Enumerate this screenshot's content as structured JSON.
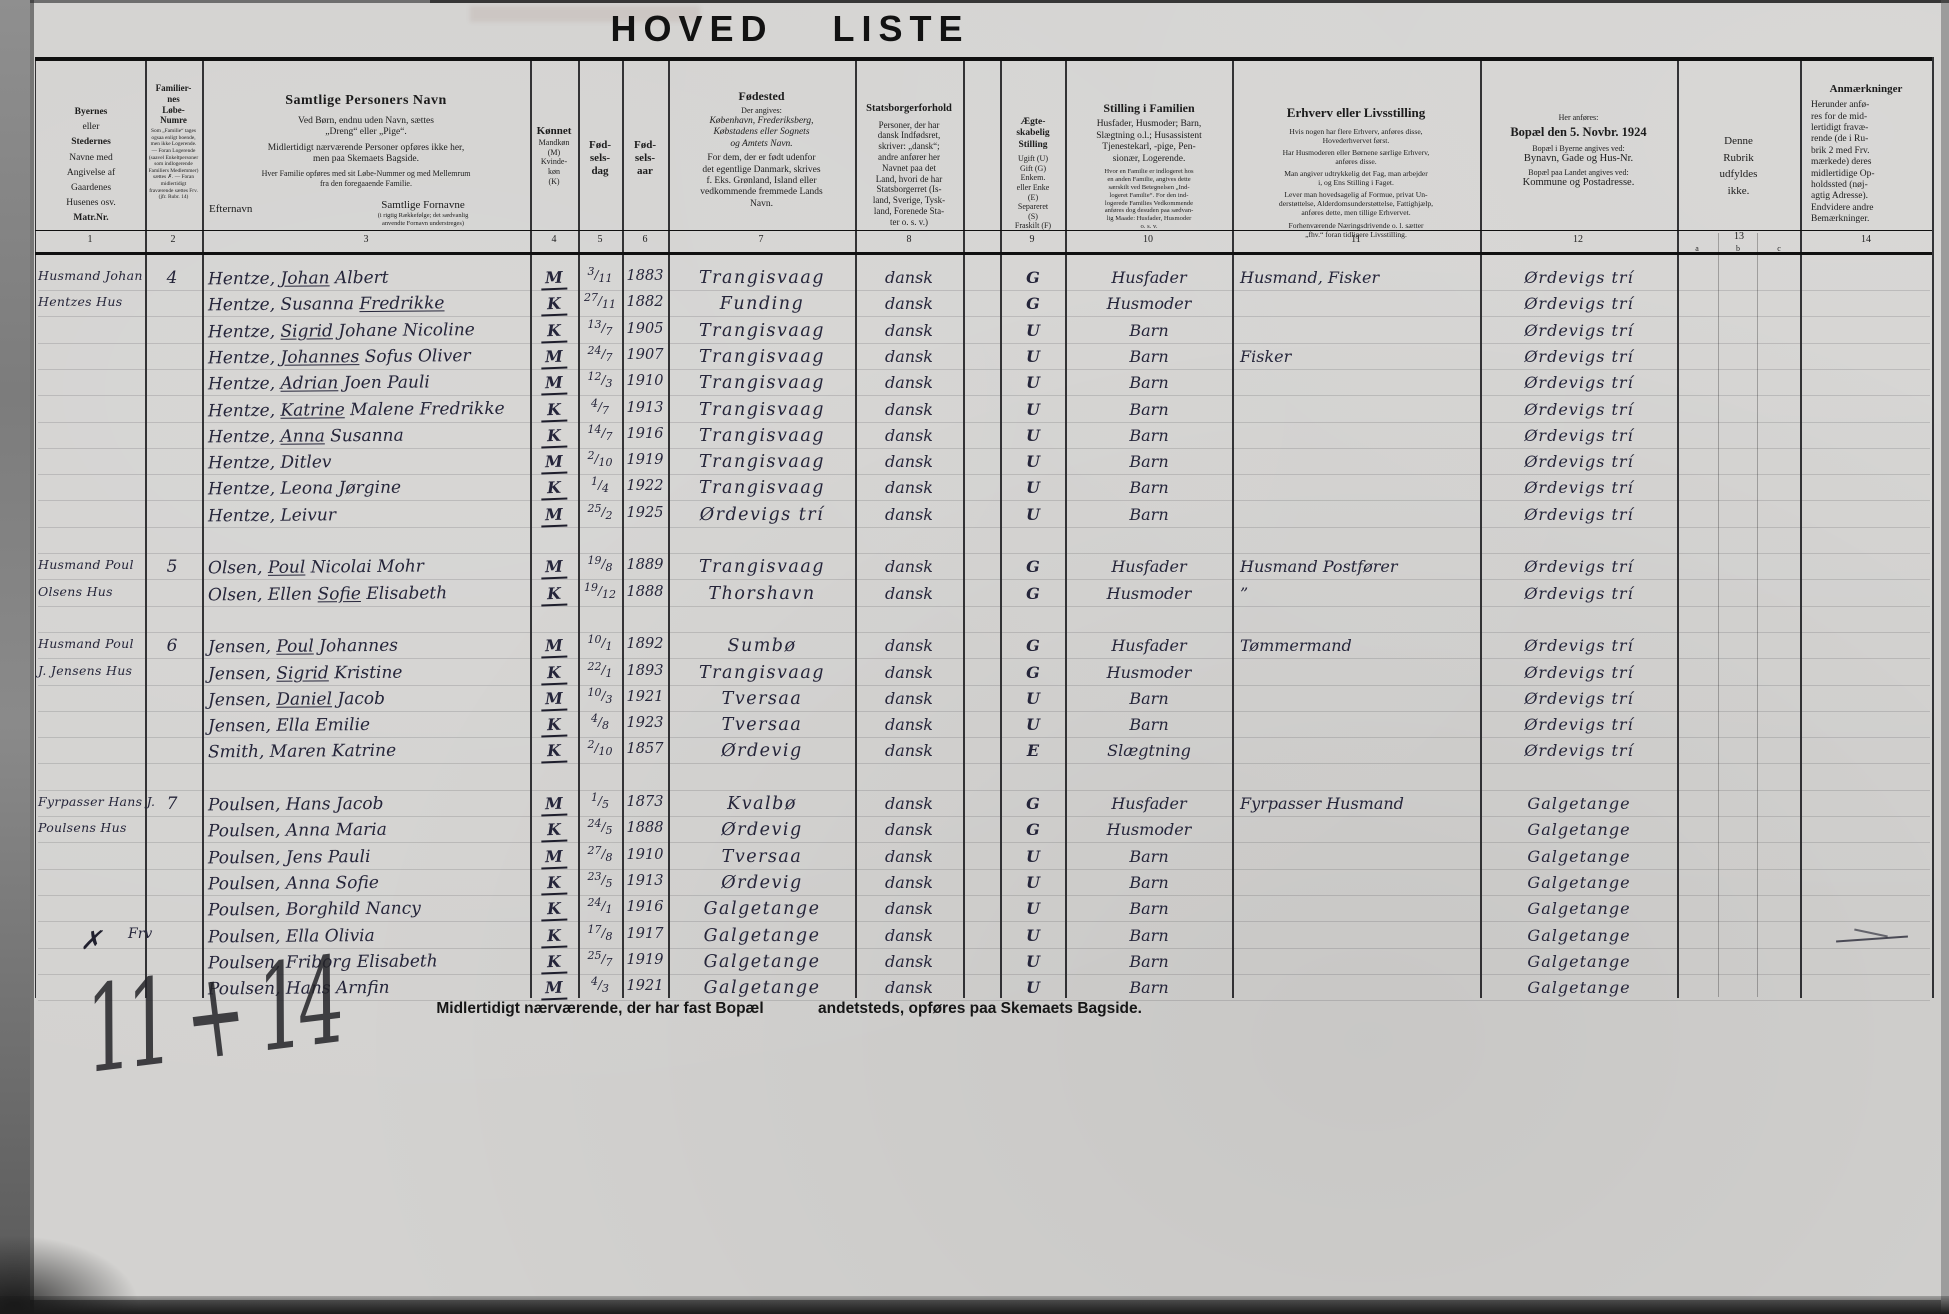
{
  "title": "HOVED LISTE",
  "header": {
    "c1": {
      "b1": "Byernes",
      "n1": "eller",
      "b2": "Stedernes",
      "rest": "Navne med\nAngivelse af\nGaardenes\nHusenes osv.",
      "b3": "Matr.Nr."
    },
    "c2": {
      "head": "Familier-\nnes\nLøbe-\nNumre",
      "small": "Som „Familie“ tages ogsaa enligt boende, men ikke Logerende. — Foran Logerende (saavel Enkeltpersoner som indlogerende Familiers Medlemmer) sættes ✗. — Foran midlertidigt fraværende sættes Frv. (jfr. Rubr. 14)"
    },
    "c3": {
      "head": "Samtlige Personers Navn",
      "p1": "Ved Børn, endnu uden Navn, sættes\n„Dreng“ eller „Pige“.",
      "p2": "Midlertidigt nærværende Personer opføres ikke her,\nmen paa Skemaets Bagside.",
      "p3": "Hver Familie opføres med sit Løbe-Nummer og med Mellemrum\nfra den foregaaende Familie.",
      "surname": "Efternavn",
      "given": "Samtlige Fornavne",
      "given_small": "(i rigtig Rækkefølge; det sædvanlig\nanvendte Fornavn understreges)"
    },
    "c4": {
      "head": "Kønnet",
      "small": "Mandkøn\n(M)\nKvinde-\nkøn\n(K)"
    },
    "c5": {
      "head": "Fød-\nsels-\ndag"
    },
    "c6": {
      "head": "Fød-\nsels-\naar"
    },
    "c7": {
      "head": "Fødested",
      "s1": "Der angives:",
      "s2": "København, Frederiksberg,\nKøbstadens eller Sognets\nog Amtets Navn.",
      "s3": "For dem, der er født udenfor\ndet egentlige Danmark, skrives\nf. Eks. Grønland, Island eller\nvedkommende fremmede Lands\nNavn."
    },
    "c8": {
      "head": "Statsborgerforhold",
      "body": "Personer, der har\ndansk Indfødsret,\nskriver: „dansk“;\nandre anfører her\nNavnet paa det\nLand, hvori de har\nStatsborgerret (Is-\nland, Sverige, Tysk-\nland, Forenede Sta-\nter o. s. v.)"
    },
    "c9": {
      "head": "Ægte-\nskabelig\nStilling",
      "body": "Ugift (U)\nGift (G)\nEnkem.\neller Enke\n(E)\nSepareret\n(S)\nFraskilt (F)"
    },
    "c10": {
      "head": "Stilling i Familien",
      "body": "Husfader, Husmoder; Barn,\nSlægtning o.l.; Husassistent\nTjenestekarl, -pige, Pen-\nsionær, Logerende.",
      "small": "Hvor en Familie er indlogeret hos\nen anden Familie, angives dette\nsærskilt ved Betegnelsen „Ind-\nlogeret Familie“. For den ind-\nlogerede Families Vedkommende\nanføres dog desuden paa sædvan-\nlig Maade: Husfader, Husmoder\no. s. v.",
      "num": "10"
    },
    "c11": {
      "head": "Erhverv eller Livsstilling",
      "p1": "Hvis nogen har flere Erhverv, anføres disse,\nHovederhvervet først.",
      "p2": "Har Husmoderen eller Børnene særlige Erhverv,\nanføres disse.",
      "p3": "Man angiver udtrykkelig det Fag, man arbejder\ni, og Ens Stilling i Faget.",
      "p4": "Lever man hovedsagelig af Formue, privat Un-\nderstøttelse, Alderdomsunderstøttelse, Fattighjælp,\nanføres dette, men tillige Erhvervet.",
      "p5": "Forhenværende Næringsdrivende o. l. sætter\n„fhv.“ foran tidligere Livsstilling."
    },
    "c12": {
      "s1": "Her anføres:",
      "head": "Bopæl den 5. Novbr. 1924",
      "l1": "Bopæl i Byerne angives ved:",
      "l2": "Bynavn, Gade og Hus-Nr.",
      "l3": "Bopæl paa Landet angives ved:",
      "l4": "Kommune og Postadresse."
    },
    "c13": {
      "body": "Denne\nRubrik\nudfyldes\nikke."
    },
    "c14": {
      "head": "Anmærkninger",
      "body": "Herunder anfø-\nres for de mid-\nlertidigt fravæ-\nrende (de i Ru-\nbrik 2 med Frv.\nmærkede) deres\nmidlertidige Op-\nholdssted (nøj-\nagtig Adresse).\nEndvidere andre\nBemærkninger."
    }
  },
  "numbers": [
    "1",
    "2",
    "3",
    "4",
    "5",
    "6",
    "7",
    "8",
    "9",
    "10",
    "11",
    "12",
    "13",
    "14"
  ],
  "abc": [
    "a",
    "b",
    "c"
  ],
  "families": [
    {
      "label1": "Husmand Johan",
      "label2": "Hentzes Hus",
      "number": "4",
      "members": [
        {
          "name": "Hentze, *Johan* Albert",
          "sex": "M",
          "day": "3/11",
          "year": "1883",
          "birthplace": "Trangisvaag",
          "citizenship": "dansk",
          "marital": "G",
          "position": "Husfader",
          "occupation": "Husmand, Fisker",
          "residence": "Ørdevigs trí"
        },
        {
          "name": "Hentze, Susanna *Fredrikke*",
          "sex": "K",
          "day": "27/11",
          "year": "1882",
          "birthplace": "Funding",
          "citizenship": "dansk",
          "marital": "G",
          "position": "Husmoder",
          "occupation": "",
          "residence": "Ørdevigs trí"
        },
        {
          "name": "Hentze, *Sigrid* Johane Nicoline",
          "sex": "K",
          "day": "13/7",
          "year": "1905",
          "birthplace": "Trangisvaag",
          "citizenship": "dansk",
          "marital": "U",
          "position": "Barn",
          "occupation": "",
          "residence": "Ørdevigs trí"
        },
        {
          "name": "Hentze, *Johannes* Sofus Oliver",
          "sex": "M",
          "day": "24/7",
          "year": "1907",
          "birthplace": "Trangisvaag",
          "citizenship": "dansk",
          "marital": "U",
          "position": "Barn",
          "occupation": "Fisker",
          "residence": "Ørdevigs trí"
        },
        {
          "name": "Hentze, *Adrian* Joen Pauli",
          "sex": "M",
          "day": "12/3",
          "year": "1910",
          "birthplace": "Trangisvaag",
          "citizenship": "dansk",
          "marital": "U",
          "position": "Barn",
          "occupation": "",
          "residence": "Ørdevigs trí"
        },
        {
          "name": "Hentze, *Katrine* Malene Fredrikke",
          "sex": "K",
          "day": "4/7",
          "year": "1913",
          "birthplace": "Trangisvaag",
          "citizenship": "dansk",
          "marital": "U",
          "position": "Barn",
          "occupation": "",
          "residence": "Ørdevigs trí"
        },
        {
          "name": "Hentze, *Anna* Susanna",
          "sex": "K",
          "day": "14/7",
          "year": "1916",
          "birthplace": "Trangisvaag",
          "citizenship": "dansk",
          "marital": "U",
          "position": "Barn",
          "occupation": "",
          "residence": "Ørdevigs trí"
        },
        {
          "name": "Hentze, Ditlev",
          "sex": "M",
          "day": "2/10",
          "year": "1919",
          "birthplace": "Trangisvaag",
          "citizenship": "dansk",
          "marital": "U",
          "position": "Barn",
          "occupation": "",
          "residence": "Ørdevigs trí"
        },
        {
          "name": "Hentze, Leona Jørgine",
          "sex": "K",
          "day": "1/4",
          "year": "1922",
          "birthplace": "Trangisvaag",
          "citizenship": "dansk",
          "marital": "U",
          "position": "Barn",
          "occupation": "",
          "residence": "Ørdevigs trí"
        },
        {
          "name": "Hentze, Leivur",
          "sex": "M",
          "day": "25/2",
          "year": "1925",
          "birthplace": "Ørdevigs trí",
          "citizenship": "dansk",
          "marital": "U",
          "position": "Barn",
          "occupation": "",
          "residence": "Ørdevigs trí"
        }
      ]
    },
    {
      "label1": "Husmand Poul",
      "label2": "Olsens Hus",
      "number": "5",
      "members": [
        {
          "name": "Olsen, *Poul* Nicolai Mohr",
          "sex": "M",
          "day": "19/8",
          "year": "1889",
          "birthplace": "Trangisvaag",
          "citizenship": "dansk",
          "marital": "G",
          "position": "Husfader",
          "occupation": "Husmand Postfører",
          "residence": "Ørdevigs trí"
        },
        {
          "name": "Olsen, Ellen *Sofie* Elisabeth",
          "sex": "K",
          "day": "19/12",
          "year": "1888",
          "birthplace": "Thorshavn",
          "citizenship": "dansk",
          "marital": "G",
          "position": "Husmoder",
          "occupation": "”",
          "residence": "Ørdevigs trí"
        }
      ]
    },
    {
      "label1": "Husmand Poul",
      "label2": "J. Jensens Hus",
      "number": "6",
      "members": [
        {
          "name": "Jensen, *Poul* Johannes",
          "sex": "M",
          "day": "10/1",
          "year": "1892",
          "birthplace": "Sumbø",
          "citizenship": "dansk",
          "marital": "G",
          "position": "Husfader",
          "occupation": "Tømmermand",
          "residence": "Ørdevigs trí"
        },
        {
          "name": "Jensen, *Sigrid* Kristine",
          "sex": "K",
          "day": "22/1",
          "year": "1893",
          "birthplace": "Trangisvaag",
          "citizenship": "dansk",
          "marital": "G",
          "position": "Husmoder",
          "occupation": "",
          "residence": "Ørdevigs trí"
        },
        {
          "name": "Jensen, *Daniel* Jacob",
          "sex": "M",
          "day": "10/3",
          "year": "1921",
          "birthplace": "Tversaa",
          "citizenship": "dansk",
          "marital": "U",
          "position": "Barn",
          "occupation": "",
          "residence": "Ørdevigs trí"
        },
        {
          "name": "Jensen, Ella Emilie",
          "sex": "K",
          "day": "4/8",
          "year": "1923",
          "birthplace": "Tversaa",
          "citizenship": "dansk",
          "marital": "U",
          "position": "Barn",
          "occupation": "",
          "residence": "Ørdevigs trí"
        },
        {
          "name": "Smith, Maren Katrine",
          "sex": "K",
          "day": "2/10",
          "year": "1857",
          "birthplace": "Ørdevig",
          "citizenship": "dansk",
          "marital": "E",
          "position": "Slægtning",
          "occupation": "",
          "residence": "Ørdevigs trí"
        }
      ]
    },
    {
      "label1": "Fyrpasser Hans J.",
      "label2": "Poulsens Hus",
      "number": "7",
      "members": [
        {
          "name": "Poulsen, Hans Jacob",
          "sex": "M",
          "day": "1/5",
          "year": "1873",
          "birthplace": "Kvalbø",
          "citizenship": "dansk",
          "marital": "G",
          "position": "Husfader",
          "occupation": "Fyrpasser Husmand",
          "residence": "Galgetange"
        },
        {
          "name": "Poulsen, Anna Maria",
          "sex": "K",
          "day": "24/5",
          "year": "1888",
          "birthplace": "Ørdevig",
          "citizenship": "dansk",
          "marital": "G",
          "position": "Husmoder",
          "occupation": "",
          "residence": "Galgetange"
        },
        {
          "name": "Poulsen, Jens Pauli",
          "sex": "M",
          "day": "27/8",
          "year": "1910",
          "birthplace": "Tversaa",
          "citizenship": "dansk",
          "marital": "U",
          "position": "Barn",
          "occupation": "",
          "residence": "Galgetange"
        },
        {
          "name": "Poulsen, Anna Sofie",
          "sex": "K",
          "day": "23/5",
          "year": "1913",
          "birthplace": "Ørdevig",
          "citizenship": "dansk",
          "marital": "U",
          "position": "Barn",
          "occupation": "",
          "residence": "Galgetange"
        },
        {
          "name": "Poulsen, Borghild Nancy",
          "sex": "K",
          "day": "24/1",
          "year": "1916",
          "birthplace": "Galgetange",
          "citizenship": "dansk",
          "marital": "U",
          "position": "Barn",
          "occupation": "",
          "residence": "Galgetange"
        },
        {
          "name": "Poulsen, Ella Olivia",
          "sex": "K",
          "day": "17/8",
          "year": "1917",
          "birthplace": "Galgetange",
          "citizenship": "dansk",
          "marital": "U",
          "position": "Barn",
          "occupation": "",
          "residence": "Galgetange",
          "margin_mark": "✗",
          "prefix": "Frv",
          "struck_remark": true
        },
        {
          "name": "Poulsen, Friborg Elisabeth",
          "sex": "K",
          "day": "25/7",
          "year": "1919",
          "birthplace": "Galgetange",
          "citizenship": "dansk",
          "marital": "U",
          "position": "Barn",
          "occupation": "",
          "residence": "Galgetange"
        },
        {
          "name": "Poulsen, Hans Arnfin",
          "sex": "M",
          "day": "4/3",
          "year": "1921",
          "birthplace": "Galgetange",
          "citizenship": "dansk",
          "marital": "U",
          "position": "Barn",
          "occupation": "",
          "residence": "Galgetange"
        }
      ]
    }
  ],
  "footer": {
    "left": "Midlertidigt nærværende, der har fast Bopæl",
    "right": "andetsteds, opføres paa Skemaets Bagside."
  },
  "scribble": "11 + 14"
}
